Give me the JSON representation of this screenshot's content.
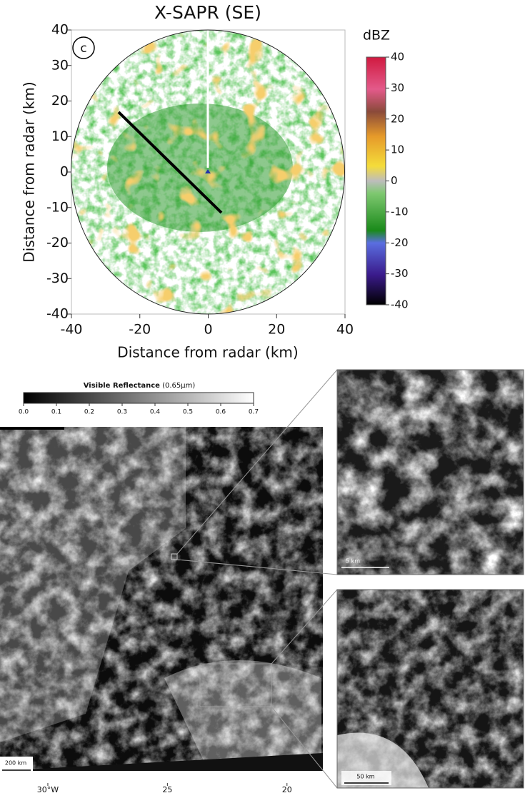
{
  "chart_data": [
    {
      "type": "ppi",
      "title": "X-SAPR (SE)",
      "panel_label": "c",
      "xlabel": "Distance from radar (km)",
      "ylabel": "Distance from radar (km)",
      "xlim": [
        -40,
        40
      ],
      "ylim": [
        -40,
        40
      ],
      "xticks": [
        -40,
        -20,
        0,
        20,
        40
      ],
      "yticks": [
        -40,
        -30,
        -20,
        -10,
        0,
        10,
        20,
        30,
        40
      ],
      "colorbar": {
        "label": "dBZ",
        "lim": [
          -40,
          40
        ],
        "ticks": [
          -40,
          -30,
          -20,
          -10,
          0,
          10,
          20,
          30,
          40
        ]
      }
    },
    {
      "type": "image",
      "colorbar": {
        "label": "Visible Reflectance",
        "unit": "(0.65µm)",
        "lim": [
          0,
          0.7
        ],
        "ticks": [
          {
            "value": 0,
            "label": "0.0"
          },
          0.1,
          0.2,
          0.3,
          0.4,
          0.5,
          0.6,
          0.7
        ]
      },
      "xlim": [
        32,
        18.5
      ],
      "xticks": [
        {
          "value": 30,
          "label": "30°W"
        },
        25,
        20
      ],
      "scale_bars": [
        "200 km",
        "5 km",
        "50 km"
      ]
    }
  ]
}
